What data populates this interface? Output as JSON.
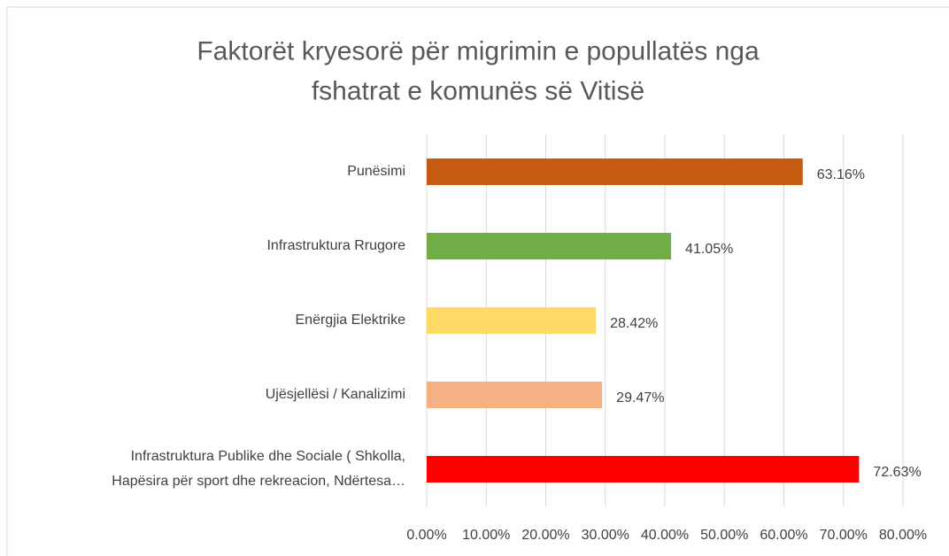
{
  "chart_data": {
    "type": "bar",
    "orientation": "horizontal",
    "title": "Faktorët kryesorë për migrimin e popullatës nga fshatrat e komunës së Vitisë",
    "categories": [
      "Punësimi",
      "Infrastruktura Rrugore",
      "Enërgjia Elektrike",
      "Ujësjellësi / Kanalizimi",
      "Infrastruktura Publike dhe Sociale ( Shkolla, Hapësira për sport dhe rekreacion, Ndërtesa…"
    ],
    "values": [
      63.16,
      41.05,
      28.42,
      29.47,
      72.63
    ],
    "value_labels": [
      "63.16%",
      "41.05%",
      "28.42%",
      "29.47%",
      "72.63%"
    ],
    "colors": [
      "#c55a11",
      "#70ad47",
      "#ffd966",
      "#f4b183",
      "#ff0000"
    ],
    "xlim": [
      0,
      80
    ],
    "xticks": [
      {
        "value": 0,
        "label": "0.00%"
      },
      {
        "value": 10,
        "label": "10.00%"
      },
      {
        "value": 20,
        "label": "20.00%"
      },
      {
        "value": 30,
        "label": "30.00%"
      },
      {
        "value": 40,
        "label": "40.00%"
      },
      {
        "value": 50,
        "label": "50.00%"
      },
      {
        "value": 60,
        "label": "60.00%"
      },
      {
        "value": 70,
        "label": "70.00%"
      },
      {
        "value": 80,
        "label": "80.00%"
      }
    ],
    "grid": true
  }
}
